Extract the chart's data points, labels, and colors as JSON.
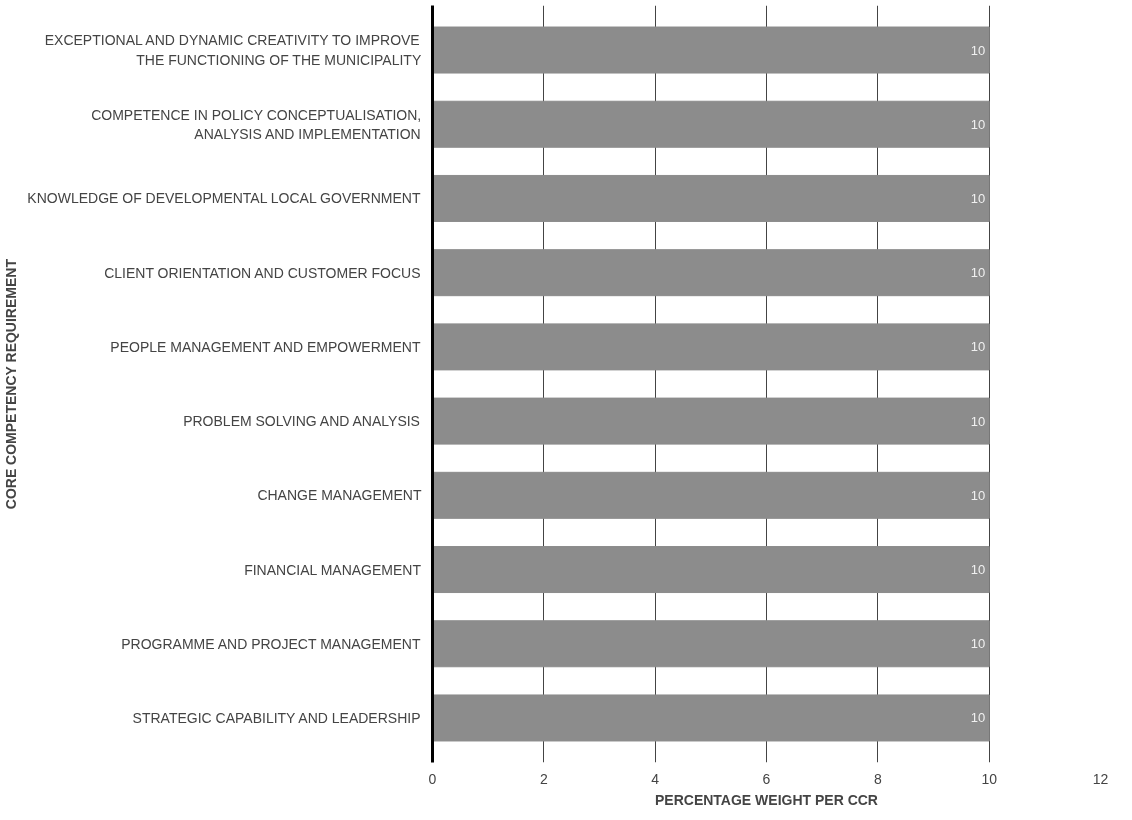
{
  "chart_data": {
    "type": "bar",
    "orientation": "horizontal",
    "xlabel": "PERCENTAGE WEIGHT PER CCR",
    "ylabel": "CORE COMPETENCY REQUIREMENT",
    "categories": [
      "EXCEPTIONAL AND DYNAMIC CREATIVITY TO IMPROVE THE FUNCTIONING OF THE MUNICIPALITY",
      "COMPETENCE IN POLICY CONCEPTUALISATION, ANALYSIS AND IMPLEMENTATION",
      "KNOWLEDGE OF DEVELOPMENTAL LOCAL GOVERNMENT",
      "CLIENT ORIENTATION AND CUSTOMER FOCUS",
      "PEOPLE MANAGEMENT AND EMPOWERMENT",
      "PROBLEM SOLVING AND ANALYSIS",
      "CHANGE MANAGEMENT",
      "FINANCIAL MANAGEMENT",
      "PROGRAMME AND PROJECT MANAGEMENT",
      "STRATEGIC CAPABILITY AND LEADERSHIP"
    ],
    "values": [
      10,
      10,
      10,
      10,
      10,
      10,
      10,
      10,
      10,
      10
    ],
    "color": "#8c8c8c",
    "data_labels": true,
    "xlim": [
      0,
      12
    ],
    "xticks": [
      0,
      2,
      4,
      6,
      8,
      10,
      12
    ],
    "grid": "x"
  }
}
